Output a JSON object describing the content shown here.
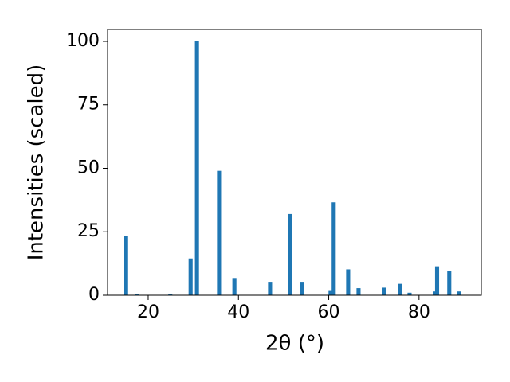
{
  "chart_data": {
    "type": "bar",
    "xlabel": "2θ (°)",
    "ylabel": "Intensities (scaled)",
    "x": [
      15.1,
      17.5,
      24.9,
      29.4,
      30.8,
      35.7,
      39.1,
      47.0,
      51.4,
      54.1,
      60.4,
      61.1,
      64.3,
      66.6,
      72.2,
      75.8,
      77.9,
      83.5,
      84.0,
      86.7,
      88.8
    ],
    "values": [
      23.5,
      0.5,
      0.5,
      14.5,
      100,
      49,
      6.8,
      5.3,
      32,
      5.3,
      1.7,
      36.6,
      10.2,
      2.8,
      3.0,
      4.5,
      1.0,
      1.5,
      11.4,
      9.6,
      1.5
    ],
    "color": "#1f77b4",
    "bar_width": 0.9,
    "xlim": [
      11,
      93.8
    ],
    "ylim": [
      0,
      104.7
    ],
    "xticks": [
      20,
      40,
      60,
      80
    ],
    "yticks": [
      0,
      25,
      50,
      75,
      100
    ]
  }
}
